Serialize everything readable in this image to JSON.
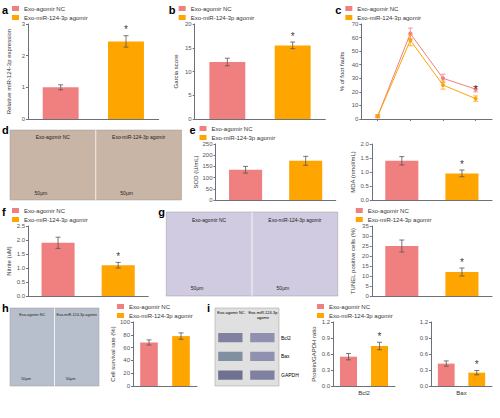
{
  "chart_data": [
    {
      "type": "bar",
      "title": "a",
      "categories": [
        "Exo-agomir NC",
        "Exo-miR-124-3p agomir"
      ],
      "values": [
        1.0,
        2.45
      ],
      "errors": [
        0.08,
        0.18
      ],
      "colors": [
        "#F08080",
        "#FFA500"
      ],
      "ylabel": "Relative miR-124-3p expression",
      "ylim": [
        0,
        3.0
      ],
      "yticks": [
        0,
        1,
        2,
        3
      ],
      "grid": false,
      "legend": "upper left",
      "tick_labels": "y",
      "annotations": [
        {
          "text": "*",
          "x": "Exo-miR-124-3p agomir"
        }
      ]
    },
    {
      "type": "bar",
      "title": "b",
      "categories": [
        "Exo-agomir NC",
        "Exo-miR-124-3p agomir"
      ],
      "values": [
        12.0,
        15.5
      ],
      "errors": [
        0.8,
        0.7
      ],
      "colors": [
        "#F08080",
        "#FFA500"
      ],
      "ylabel": "Garcia score",
      "ylim": [
        0,
        20
      ],
      "yticks": [
        0,
        5,
        10,
        15,
        20
      ],
      "grid": false,
      "legend": "upper left",
      "tick_labels": "y",
      "annotations": [
        {
          "text": "*",
          "x": "Exo-miR-124-3p agomir"
        }
      ]
    },
    {
      "type": "line",
      "title": "c",
      "x": [
        1,
        2,
        3,
        4
      ],
      "xlim": [
        0.5,
        4.5
      ],
      "xticks": [
        1,
        2,
        3,
        4
      ],
      "series": [
        {
          "name": "Exo-agomir NC",
          "color": "#F08080",
          "values": [
            2,
            63,
            30,
            22
          ],
          "errors": [
            1,
            4,
            3,
            2
          ]
        },
        {
          "name": "Exo-miR-124-3p agomir",
          "color": "#FFA500",
          "values": [
            2,
            58,
            25,
            15
          ],
          "errors": [
            1,
            4,
            3,
            2
          ]
        }
      ],
      "marker": "circle",
      "ylabel": "% of foot faults",
      "ylim": [
        0,
        70
      ],
      "yticks": [
        0,
        10,
        20,
        30,
        40,
        50,
        60,
        70
      ],
      "grid": false,
      "legend": "upper left",
      "tick_labels": "y",
      "annotations": [
        {
          "text": "*",
          "x": 4,
          "series": "Exo-miR-124-3p agomir"
        }
      ]
    },
    {
      "type": "image",
      "title": "d",
      "color": "#C8B5A5",
      "annotations": [
        "Exo-agomir NC",
        "Exo-miR-124-3p agomir",
        "50μm",
        "50μm"
      ]
    },
    {
      "type": "bar",
      "title": "e",
      "categories": [
        "Exo-agomir NC",
        "Exo-miR-124-3p agomir"
      ],
      "values": [
        135,
        175
      ],
      "errors": [
        15,
        20
      ],
      "colors": [
        "#F08080",
        "#FFA500"
      ],
      "ylabel": "SOD (U/mL)",
      "ylim": [
        0,
        250
      ],
      "yticks": [
        0,
        50,
        100,
        150,
        200,
        250
      ],
      "grid": false,
      "legend": "upper left",
      "tick_labels": "y"
    },
    {
      "type": "bar",
      "categories": [
        "Exo-agomir NC",
        "Exo-miR-124-3p agomir"
      ],
      "values": [
        1.4,
        0.95
      ],
      "errors": [
        0.15,
        0.12
      ],
      "colors": [
        "#F08080",
        "#FFA500"
      ],
      "ylabel": "MDA (nmol/mL)",
      "ylim": [
        0,
        2.0
      ],
      "yticks": [
        {
          "value": 0,
          "label": "0.0"
        },
        0.5,
        {
          "value": 1,
          "label": "1.0"
        },
        1.5,
        {
          "value": 2,
          "label": "2.0"
        }
      ],
      "grid": false,
      "tick_labels": "y",
      "annotations": [
        {
          "text": "*",
          "x": "Exo-miR-124-3p agomir"
        }
      ]
    },
    {
      "type": "bar",
      "title": "f",
      "categories": [
        "Exo-agomir NC",
        "Exo-miR-124-3p agomir"
      ],
      "values": [
        1.9,
        1.1
      ],
      "errors": [
        0.2,
        0.1
      ],
      "colors": [
        "#F08080",
        "#FFA500"
      ],
      "ylabel": "Nitrite (uM)",
      "ylim": [
        0,
        2.5
      ],
      "yticks": [
        {
          "value": 0,
          "label": "0.0"
        },
        0.5,
        {
          "value": 1,
          "label": "1.0"
        },
        1.5,
        {
          "value": 2,
          "label": "2.0"
        },
        2.5
      ],
      "grid": false,
      "legend": "upper left",
      "tick_labels": "y",
      "annotations": [
        {
          "text": "*",
          "x": "Exo-miR-124-3p agomir"
        }
      ]
    },
    {
      "type": "image",
      "title": "g",
      "color": "#D0CBE0",
      "annotations": [
        "Exo-agomir NC",
        "Exo-miR-124-3p agomir",
        "50μm",
        "50μm"
      ]
    },
    {
      "type": "bar",
      "categories": [
        "Exo-agomir NC",
        "Exo-miR-124-3p agomir"
      ],
      "values": [
        25,
        12
      ],
      "errors": [
        3,
        2
      ],
      "colors": [
        "#F08080",
        "#FFA500"
      ],
      "ylabel": "TUNEL positive cells (%)",
      "ylim": [
        0,
        35
      ],
      "yticks": [
        0,
        5,
        10,
        15,
        20,
        25,
        30,
        35
      ],
      "grid": false,
      "legend": "upper left",
      "tick_labels": "y",
      "annotations": [
        {
          "text": "*",
          "x": "Exo-miR-124-3p agomir"
        }
      ]
    },
    {
      "type": "image",
      "title": "h",
      "color": "#B8BFCC",
      "annotations": [
        "Exo-agomir NC",
        "Exo-miR-124-3p agomir",
        "50μm",
        "50μm"
      ]
    },
    {
      "type": "bar",
      "categories": [
        "Exo-agomir NC",
        "Exo-miR-124-3p agomir"
      ],
      "values": [
        68,
        78
      ],
      "errors": [
        4,
        5
      ],
      "colors": [
        "#F08080",
        "#FFA500"
      ],
      "ylabel": "Cell survival rate (%)",
      "ylim": [
        0,
        100
      ],
      "yticks": [
        0,
        20,
        40,
        60,
        80,
        100
      ],
      "grid": false,
      "legend": "upper left",
      "tick_labels": "y"
    },
    {
      "type": "blot",
      "title": "i",
      "color": "#E0E0E0",
      "annotations": [
        "Exo-agomir NC",
        "Exo-miR-124-3p\nagomir",
        "Bcl2",
        "Bax",
        "GAPDH"
      ]
    },
    {
      "type": "bar",
      "categories": [
        "Exo-agomir NC",
        "Exo-miR-124-3p agomir"
      ],
      "values": [
        0.55,
        0.75
      ],
      "errors": [
        0.06,
        0.07
      ],
      "colors": [
        "#F08080",
        "#FFA500"
      ],
      "ylabel": "Protein/GAPDH ratio",
      "xlabel": "Bcl2",
      "ylim": [
        0,
        1.2
      ],
      "yticks": [
        {
          "value": 0,
          "label": "0.0"
        },
        0.3,
        0.6,
        0.9,
        1.2
      ],
      "grid": false,
      "legend": "upper left",
      "tick_labels": "y",
      "annotations": [
        {
          "text": "*",
          "x": "Exo-miR-124-3p agomir"
        }
      ]
    },
    {
      "type": "bar",
      "categories": [
        "Exo-agomir NC",
        "Exo-miR-124-3p agomir"
      ],
      "values": [
        0.42,
        0.25
      ],
      "errors": [
        0.05,
        0.04
      ],
      "colors": [
        "#F08080",
        "#FFA500"
      ],
      "xlabel": "Bax",
      "ylim": [
        0,
        1.2
      ],
      "yticks": [
        {
          "value": 0,
          "label": "0.0"
        },
        0.3,
        0.6,
        0.9,
        1.2
      ],
      "grid": false,
      "tick_labels": "y",
      "annotations": [
        {
          "text": "*",
          "x": "Exo-miR-124-3p agomir"
        }
      ]
    }
  ]
}
